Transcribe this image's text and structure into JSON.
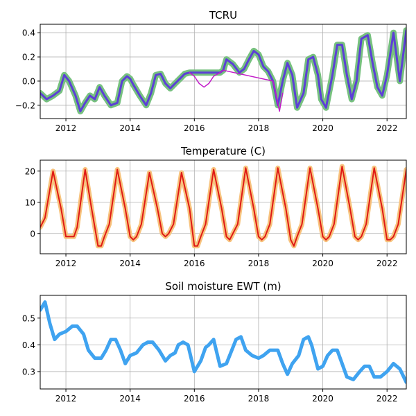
{
  "chart_data": [
    {
      "type": "line",
      "title": "TCRU",
      "xlabel": "",
      "ylabel": "",
      "xlim": [
        2011.2,
        2022.6
      ],
      "ylim": [
        -0.31,
        0.47
      ],
      "xticks": [
        2012,
        2014,
        2016,
        2018,
        2020,
        2022
      ],
      "yticks": [
        -0.2,
        0.0,
        0.2,
        0.4
      ],
      "ytick_labels": [
        "−0.2",
        "0.0",
        "0.2",
        "0.4"
      ],
      "grid": true,
      "series": [
        {
          "color": "#77c17f",
          "width": 9,
          "x": [
            2011.2,
            2011.4,
            2011.6,
            2011.8,
            2011.95,
            2012.1,
            2012.3,
            2012.45,
            2012.6,
            2012.75,
            2012.9,
            2013.05,
            2013.2,
            2013.4,
            2013.6,
            2013.75,
            2013.9,
            2014.0,
            2014.1,
            2014.3,
            2014.5,
            2014.65,
            2014.8,
            2014.95,
            2015.1,
            2015.25,
            2015.4,
            2015.55,
            2015.7,
            2015.85,
            2016.0,
            2016.2,
            2016.4,
            2016.6,
            2016.8,
            2016.9,
            2017.0,
            2017.2,
            2017.4,
            2017.55,
            2017.7,
            2017.85,
            2018.0,
            2018.15,
            2018.3,
            2018.45,
            2018.6,
            2018.75,
            2018.9,
            2019.05,
            2019.2,
            2019.4,
            2019.55,
            2019.7,
            2019.85,
            2019.95,
            2020.1,
            2020.3,
            2020.45,
            2020.6,
            2020.75,
            2020.9,
            2021.05,
            2021.2,
            2021.4,
            2021.55,
            2021.7,
            2021.85,
            2022.0,
            2022.2,
            2022.4,
            2022.6
          ],
          "y": [
            -0.1,
            -0.15,
            -0.12,
            -0.08,
            0.05,
            0.0,
            -0.12,
            -0.25,
            -0.18,
            -0.12,
            -0.15,
            -0.05,
            -0.12,
            -0.2,
            -0.18,
            0.0,
            0.04,
            0.02,
            -0.03,
            -0.12,
            -0.2,
            -0.1,
            0.05,
            0.06,
            -0.02,
            -0.06,
            -0.02,
            0.02,
            0.06,
            0.07,
            0.07,
            0.07,
            0.07,
            0.07,
            0.07,
            0.09,
            0.18,
            0.14,
            0.07,
            0.1,
            0.18,
            0.25,
            0.22,
            0.12,
            0.08,
            0.0,
            -0.2,
            0.0,
            0.15,
            0.05,
            -0.22,
            -0.1,
            0.18,
            0.2,
            0.05,
            -0.15,
            -0.22,
            0.05,
            0.3,
            0.3,
            0.05,
            -0.15,
            0.0,
            0.35,
            0.38,
            0.15,
            -0.05,
            -0.12,
            0.05,
            0.4,
            0.0,
            0.42
          ]
        },
        {
          "color": "#5c3fd6",
          "width": 3,
          "x": [
            2011.2,
            2011.4,
            2011.6,
            2011.8,
            2011.95,
            2012.1,
            2012.3,
            2012.45,
            2012.6,
            2012.75,
            2012.9,
            2013.05,
            2013.2,
            2013.4,
            2013.6,
            2013.75,
            2013.9,
            2014.0,
            2014.1,
            2014.3,
            2014.5,
            2014.65,
            2014.8,
            2014.95,
            2015.1,
            2015.25,
            2015.4,
            2015.55,
            2015.7,
            2015.85,
            2016.0,
            2016.2,
            2016.4,
            2016.6,
            2016.8,
            2016.9,
            2017.0,
            2017.2,
            2017.4,
            2017.55,
            2017.7,
            2017.85,
            2018.0,
            2018.15,
            2018.3,
            2018.45,
            2018.6,
            2018.75,
            2018.9,
            2019.05,
            2019.2,
            2019.4,
            2019.55,
            2019.7,
            2019.85,
            2019.95,
            2020.1,
            2020.3,
            2020.45,
            2020.6,
            2020.75,
            2020.9,
            2021.05,
            2021.2,
            2021.4,
            2021.55,
            2021.7,
            2021.85,
            2022.0,
            2022.2,
            2022.4,
            2022.6
          ],
          "y": [
            -0.1,
            -0.15,
            -0.12,
            -0.08,
            0.05,
            0.0,
            -0.12,
            -0.25,
            -0.18,
            -0.12,
            -0.15,
            -0.05,
            -0.12,
            -0.2,
            -0.18,
            0.0,
            0.04,
            0.02,
            -0.03,
            -0.12,
            -0.2,
            -0.1,
            0.05,
            0.06,
            -0.02,
            -0.06,
            -0.02,
            0.02,
            0.06,
            0.07,
            0.07,
            0.07,
            0.07,
            0.07,
            0.07,
            0.09,
            0.18,
            0.14,
            0.07,
            0.1,
            0.18,
            0.25,
            0.22,
            0.12,
            0.08,
            0.0,
            -0.2,
            0.0,
            0.15,
            0.05,
            -0.22,
            -0.1,
            0.18,
            0.2,
            0.05,
            -0.15,
            -0.22,
            0.05,
            0.3,
            0.3,
            0.05,
            -0.15,
            0.0,
            0.35,
            0.38,
            0.15,
            -0.05,
            -0.12,
            0.05,
            0.4,
            0.0,
            0.42
          ]
        },
        {
          "color": "#c21ac9",
          "width": 1.5,
          "x": [
            2015.85,
            2016.0,
            2016.15,
            2016.3,
            2016.45,
            2016.6,
            2016.8,
            2016.9,
            2018.45,
            2018.55,
            2018.65,
            2018.75
          ],
          "y": [
            0.07,
            0.04,
            -0.02,
            -0.05,
            -0.02,
            0.04,
            0.07,
            0.09,
            0.0,
            -0.12,
            -0.25,
            -0.1
          ]
        }
      ]
    },
    {
      "type": "line",
      "title": "Temperature (C)",
      "xlabel": "",
      "ylabel": "",
      "xlim": [
        2011.2,
        2022.6
      ],
      "ylim": [
        -6.5,
        23.5
      ],
      "xticks": [
        2012,
        2014,
        2016,
        2018,
        2020,
        2022
      ],
      "yticks": [
        0,
        10,
        20
      ],
      "ytick_labels": [
        "0",
        "10",
        "20"
      ],
      "grid": true,
      "series": [
        {
          "color": "#f7c37e",
          "width": 7,
          "x": [
            2011.2,
            2011.35,
            2011.6,
            2011.85,
            2012.0,
            2012.1,
            2012.25,
            2012.35,
            2012.6,
            2012.8,
            2013.0,
            2013.1,
            2013.2,
            2013.35,
            2013.6,
            2013.85,
            2014.0,
            2014.1,
            2014.2,
            2014.35,
            2014.6,
            2014.85,
            2015.0,
            2015.1,
            2015.2,
            2015.35,
            2015.6,
            2015.85,
            2016.0,
            2016.1,
            2016.2,
            2016.35,
            2016.6,
            2016.85,
            2017.0,
            2017.1,
            2017.2,
            2017.35,
            2017.6,
            2017.85,
            2018.0,
            2018.1,
            2018.2,
            2018.35,
            2018.6,
            2018.85,
            2019.0,
            2019.1,
            2019.2,
            2019.35,
            2019.6,
            2019.85,
            2020.0,
            2020.1,
            2020.2,
            2020.35,
            2020.6,
            2020.85,
            2021.0,
            2021.1,
            2021.2,
            2021.35,
            2021.6,
            2021.85,
            2022.0,
            2022.1,
            2022.2,
            2022.35,
            2022.6
          ],
          "y": [
            2,
            5,
            20,
            8,
            -1,
            -1,
            -1,
            2,
            20.5,
            8,
            -4,
            -4,
            -1,
            3,
            20.5,
            8,
            -1,
            -2,
            -1,
            3,
            19.5,
            8,
            0,
            -1,
            0,
            3,
            19.5,
            8,
            -4,
            -4,
            -1,
            3,
            20.5,
            8,
            -1,
            -2,
            0,
            3,
            21,
            8,
            -1,
            -2,
            -1,
            3,
            21,
            8,
            -2,
            -4,
            -1,
            3,
            21,
            8,
            -1,
            -2,
            -1,
            3,
            21.5,
            8,
            -1,
            -2,
            -1,
            3,
            21,
            8,
            -2,
            -2,
            -1,
            3,
            20.5
          ]
        },
        {
          "color": "#e01a14",
          "width": 2,
          "x": [
            2011.2,
            2011.35,
            2011.6,
            2011.85,
            2012.0,
            2012.1,
            2012.25,
            2012.35,
            2012.6,
            2012.8,
            2013.0,
            2013.1,
            2013.2,
            2013.35,
            2013.6,
            2013.85,
            2014.0,
            2014.1,
            2014.2,
            2014.35,
            2014.6,
            2014.85,
            2015.0,
            2015.1,
            2015.2,
            2015.35,
            2015.6,
            2015.85,
            2016.0,
            2016.1,
            2016.2,
            2016.35,
            2016.6,
            2016.85,
            2017.0,
            2017.1,
            2017.2,
            2017.35,
            2017.6,
            2017.85,
            2018.0,
            2018.1,
            2018.2,
            2018.35,
            2018.6,
            2018.85,
            2019.0,
            2019.1,
            2019.2,
            2019.35,
            2019.6,
            2019.85,
            2020.0,
            2020.1,
            2020.2,
            2020.35,
            2020.6,
            2020.85,
            2021.0,
            2021.1,
            2021.2,
            2021.35,
            2021.6,
            2021.85,
            2022.0,
            2022.1,
            2022.2,
            2022.35,
            2022.6
          ],
          "y": [
            2,
            5,
            20,
            8,
            -1,
            -1,
            -1,
            2,
            20.5,
            8,
            -4,
            -4,
            -1,
            3,
            20.5,
            8,
            -1,
            -2,
            -1,
            3,
            19.5,
            8,
            0,
            -1,
            0,
            3,
            19.5,
            8,
            -4,
            -4,
            -1,
            3,
            20.5,
            8,
            -1,
            -2,
            0,
            3,
            21,
            8,
            -1,
            -2,
            -1,
            3,
            21,
            8,
            -2,
            -4,
            -1,
            3,
            21,
            8,
            -1,
            -2,
            -1,
            3,
            21.5,
            8,
            -1,
            -2,
            -1,
            3,
            21,
            8,
            -2,
            -2,
            -1,
            3,
            20.5
          ]
        }
      ]
    },
    {
      "type": "line",
      "title": "Soil moisture EWT (m)",
      "xlabel": "",
      "ylabel": "",
      "xlim": [
        2011.2,
        2022.6
      ],
      "ylim": [
        0.235,
        0.585
      ],
      "xticks": [
        2012,
        2014,
        2016,
        2018,
        2020,
        2022
      ],
      "yticks": [
        0.3,
        0.4,
        0.5
      ],
      "ytick_labels": [
        "0.3",
        "0.4",
        "0.5"
      ],
      "grid": true,
      "series": [
        {
          "color": "#3fa3f0",
          "width": 5,
          "x": [
            2011.2,
            2011.35,
            2011.5,
            2011.65,
            2011.8,
            2012.0,
            2012.2,
            2012.35,
            2012.55,
            2012.7,
            2012.9,
            2013.1,
            2013.25,
            2013.4,
            2013.55,
            2013.7,
            2013.85,
            2014.0,
            2014.2,
            2014.4,
            2014.55,
            2014.7,
            2014.9,
            2015.1,
            2015.25,
            2015.4,
            2015.5,
            2015.65,
            2015.8,
            2016.0,
            2016.2,
            2016.35,
            2016.45,
            2016.6,
            2016.8,
            2017.0,
            2017.2,
            2017.3,
            2017.45,
            2017.6,
            2017.8,
            2018.0,
            2018.15,
            2018.35,
            2018.5,
            2018.6,
            2018.75,
            2018.9,
            2019.05,
            2019.25,
            2019.4,
            2019.55,
            2019.65,
            2019.85,
            2020.0,
            2020.15,
            2020.3,
            2020.45,
            2020.6,
            2020.75,
            2020.95,
            2021.15,
            2021.3,
            2021.45,
            2021.6,
            2021.8,
            2022.0,
            2022.2,
            2022.4,
            2022.6
          ],
          "y": [
            0.53,
            0.56,
            0.48,
            0.42,
            0.44,
            0.45,
            0.47,
            0.47,
            0.44,
            0.38,
            0.35,
            0.35,
            0.38,
            0.42,
            0.42,
            0.38,
            0.33,
            0.36,
            0.37,
            0.4,
            0.41,
            0.41,
            0.38,
            0.34,
            0.36,
            0.37,
            0.4,
            0.41,
            0.4,
            0.3,
            0.34,
            0.39,
            0.4,
            0.42,
            0.32,
            0.33,
            0.39,
            0.42,
            0.43,
            0.38,
            0.36,
            0.35,
            0.36,
            0.38,
            0.38,
            0.38,
            0.33,
            0.29,
            0.33,
            0.36,
            0.42,
            0.43,
            0.4,
            0.31,
            0.32,
            0.36,
            0.38,
            0.38,
            0.33,
            0.28,
            0.27,
            0.3,
            0.32,
            0.32,
            0.28,
            0.28,
            0.3,
            0.33,
            0.31,
            0.26
          ]
        }
      ]
    }
  ]
}
